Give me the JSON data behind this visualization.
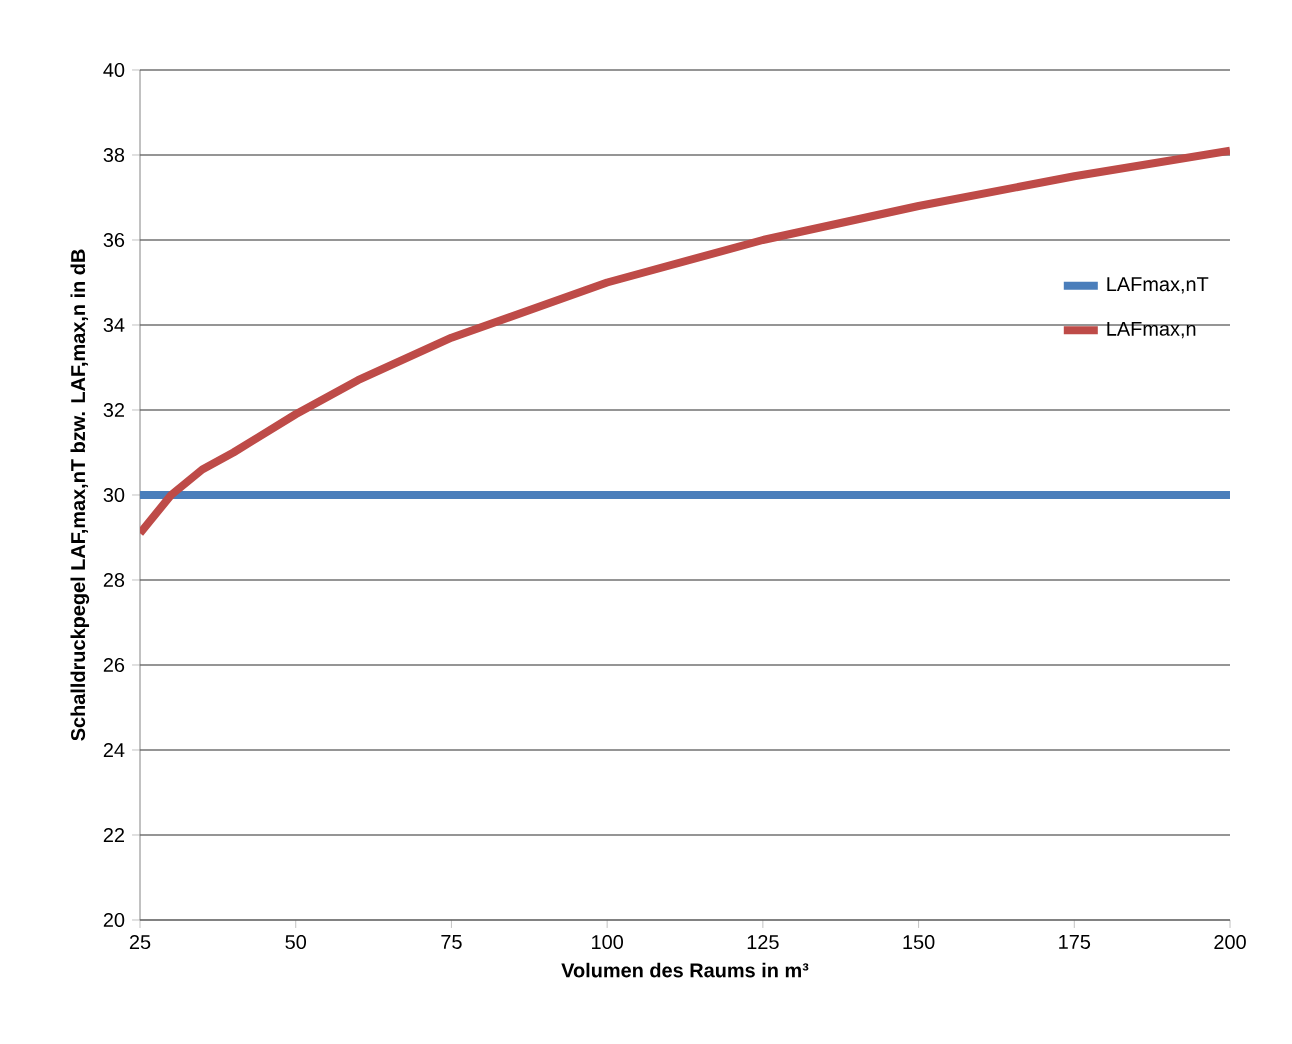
{
  "chart_data": {
    "type": "line",
    "xlabel": "Volumen des Raums in m³",
    "ylabel": "Schalldruckpegel LAF,max,nT bzw. LAF,max,n in dB",
    "xlim": [
      25,
      200
    ],
    "xticks": [
      25,
      50,
      75,
      100,
      125,
      150,
      175,
      200
    ],
    "ylim": [
      20,
      40
    ],
    "yticks": [
      20,
      22,
      24,
      26,
      28,
      30,
      32,
      34,
      36,
      38,
      40
    ],
    "grid": "y",
    "legend": "right",
    "series": [
      {
        "name": "LAFmax,nT",
        "color": "#4a7ebb",
        "x": [
          25,
          200
        ],
        "values": [
          30,
          30
        ]
      },
      {
        "name": "LAFmax,n",
        "color": "#be4b48",
        "x": [
          25,
          30,
          35,
          40,
          50,
          60,
          75,
          100,
          125,
          150,
          175,
          200
        ],
        "values": [
          29.1,
          30.0,
          30.6,
          31.0,
          31.9,
          32.7,
          33.7,
          35.0,
          36.0,
          36.8,
          37.5,
          38.1
        ]
      }
    ]
  }
}
